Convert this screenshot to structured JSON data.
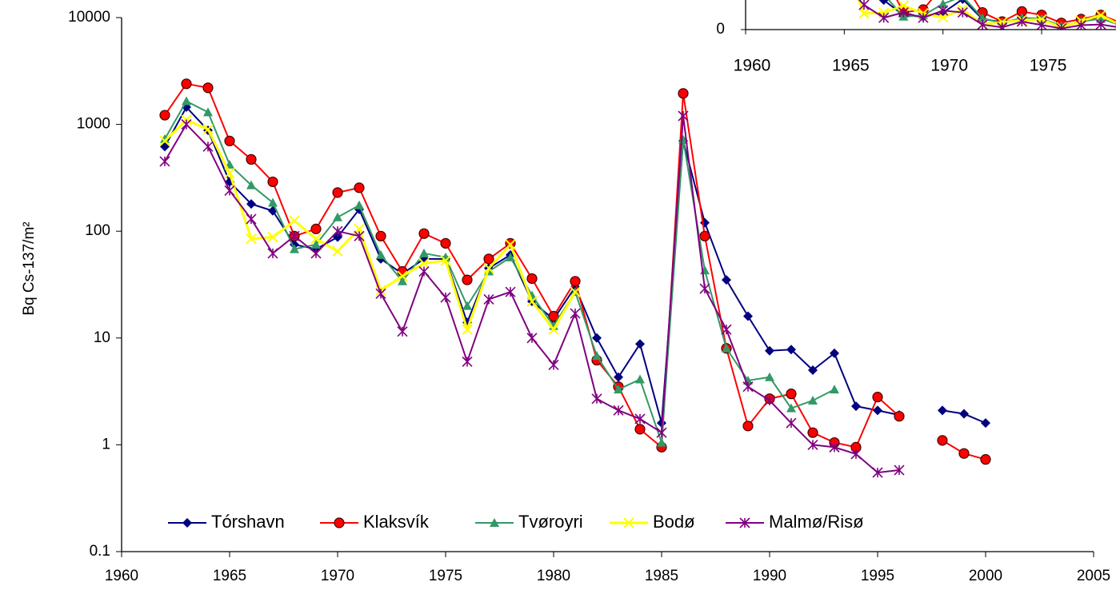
{
  "chart_data": [
    {
      "type": "line",
      "ylabel": "Bq Cs-137/m²",
      "log_y": true,
      "legend": "bottom-left",
      "xlim": [
        1960,
        2005
      ],
      "xticks": [
        1960,
        1965,
        1970,
        1975,
        1980,
        1985,
        1990,
        1995,
        2000,
        2005
      ],
      "ylim": [
        0.1,
        10000
      ],
      "yticks": [
        0.1,
        1,
        10,
        100,
        1000,
        10000
      ],
      "x": [
        1962,
        1963,
        1964,
        1965,
        1966,
        1967,
        1968,
        1969,
        1970,
        1971,
        1972,
        1973,
        1974,
        1975,
        1976,
        1977,
        1978,
        1979,
        1980,
        1981,
        1982,
        1983,
        1984,
        1985,
        1986,
        1987,
        1988,
        1989,
        1990,
        1991,
        1992,
        1993,
        1994,
        1995,
        1996,
        1997,
        1998,
        1999,
        2000
      ],
      "series": [
        {
          "name": "Tórshavn",
          "color": "#000080",
          "marker": "diamond",
          "values": [
            620,
            1450,
            880,
            290,
            180,
            155,
            75,
            68,
            88,
            160,
            55,
            40,
            55,
            55,
            14,
            45,
            60,
            22,
            15,
            30,
            10,
            4.3,
            8.8,
            1.6,
            700,
            120,
            35,
            16,
            7.6,
            7.8,
            5,
            7.2,
            2.3,
            2.1,
            1.9,
            null,
            2.1,
            1.95,
            1.6
          ]
        },
        {
          "name": "Klaksvík",
          "color": "#ff0000",
          "marker": "circle",
          "values": [
            1220,
            2400,
            2200,
            700,
            470,
            290,
            90,
            105,
            230,
            255,
            90,
            42,
            95,
            77,
            35,
            55,
            77,
            36,
            16,
            34,
            6.2,
            3.5,
            1.4,
            0.95,
            1950,
            90,
            8,
            1.5,
            2.7,
            3,
            1.3,
            1.05,
            0.95,
            2.8,
            1.85,
            null,
            1.1,
            0.83,
            0.73
          ]
        },
        {
          "name": "Tvøroyri",
          "color": "#339966",
          "marker": "triangle",
          "values": [
            730,
            1650,
            1300,
            420,
            270,
            185,
            68,
            75,
            135,
            175,
            60,
            34,
            62,
            57,
            20,
            42,
            57,
            25,
            13,
            27,
            6.8,
            3.3,
            4.1,
            1.05,
            720,
            43,
            8,
            4,
            4.3,
            2.2,
            2.6,
            3.3,
            null,
            null,
            null,
            null,
            null,
            null,
            null
          ]
        },
        {
          "name": "Bodø",
          "color": "#ffff00",
          "marker": "x",
          "values": [
            700,
            1100,
            900,
            350,
            85,
            88,
            125,
            85,
            65,
            105,
            28,
            38,
            50,
            53,
            12,
            45,
            75,
            22,
            12,
            27,
            null,
            null,
            null,
            null,
            null,
            null,
            null,
            null,
            null,
            null,
            null,
            null,
            null,
            null,
            null,
            null,
            null,
            null,
            null
          ]
        },
        {
          "name": "Malmø/Risø",
          "color": "#800080",
          "marker": "star",
          "values": [
            450,
            1000,
            620,
            240,
            130,
            62,
            90,
            62,
            100,
            90,
            26,
            11.5,
            42,
            24,
            6,
            23,
            27,
            10,
            5.6,
            17,
            2.7,
            2.1,
            1.75,
            1.3,
            1200,
            29,
            12,
            3.5,
            2.6,
            1.6,
            1,
            0.95,
            0.82,
            0.55,
            0.58,
            null,
            null,
            null,
            null
          ]
        }
      ]
    },
    {
      "type": "line",
      "xlim": [
        1960,
        1985
      ],
      "xticks": [
        1960,
        1965,
        1970,
        1975
      ],
      "ylim": [
        0,
        3000
      ],
      "yticks": [
        0
      ]
    }
  ]
}
